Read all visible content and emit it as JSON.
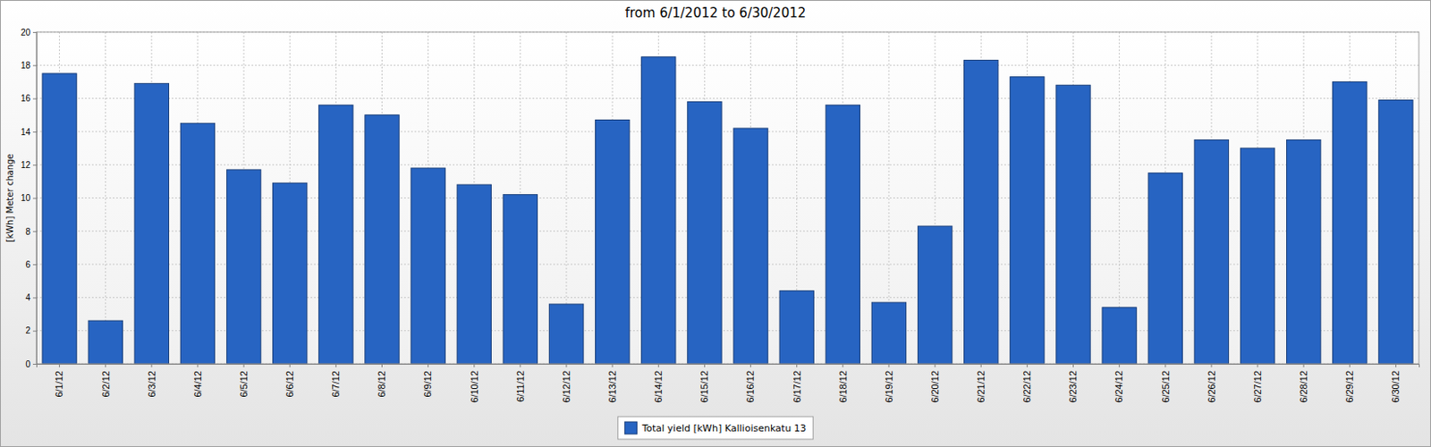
{
  "chart_data": {
    "type": "bar",
    "title": "from 6/1/2012 to 6/30/2012",
    "y_label": "[kWh] Meter change",
    "categories": [
      "6/1/12",
      "6/2/12",
      "6/3/12",
      "6/4/12",
      "6/5/12",
      "6/6/12",
      "6/7/12",
      "6/8/12",
      "6/9/12",
      "6/10/12",
      "6/11/12",
      "6/12/12",
      "6/13/12",
      "6/14/12",
      "6/15/12",
      "6/16/12",
      "6/17/12",
      "6/18/12",
      "6/19/12",
      "6/20/12",
      "6/21/12",
      "6/22/12",
      "6/23/12",
      "6/24/12",
      "6/25/12",
      "6/26/12",
      "6/27/12",
      "6/28/12",
      "6/29/12",
      "6/30/12"
    ],
    "series": [
      {
        "name": "Total yield [kWh] Kallioisenkatu 13",
        "color": "#2764c2",
        "values": [
          17.5,
          2.6,
          16.9,
          14.5,
          11.7,
          10.9,
          15.6,
          15.0,
          11.8,
          10.8,
          10.2,
          3.6,
          14.7,
          18.5,
          15.8,
          14.2,
          4.4,
          15.6,
          3.7,
          8.3,
          18.3,
          17.3,
          16.8,
          3.4,
          11.5,
          13.5,
          13.0,
          13.5,
          17.0,
          15.9
        ]
      }
    ],
    "ylim": [
      0,
      20
    ],
    "yticks": [
      0,
      2,
      4,
      6,
      8,
      10,
      12,
      14,
      16,
      18,
      20
    ],
    "grid": true,
    "legend": "bottom"
  }
}
